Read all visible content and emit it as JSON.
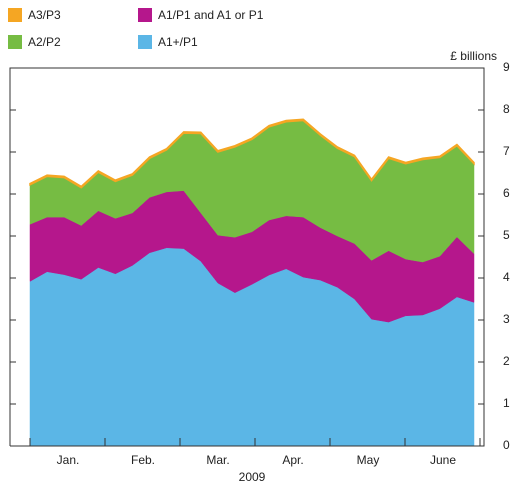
{
  "chart_data": {
    "type": "area",
    "stacked": true,
    "unit_label": "£ billions",
    "xlabel": "2009",
    "months": [
      "Jan.",
      "Feb.",
      "Mar.",
      "Apr.",
      "May",
      "June"
    ],
    "categories": [
      null,
      null,
      null,
      null,
      null,
      null,
      null,
      null,
      null,
      null,
      null,
      null,
      null,
      null,
      null,
      null,
      null,
      null,
      null,
      null,
      null,
      null,
      null,
      null,
      null,
      null,
      null
    ],
    "series": [
      {
        "name": "A1+/P1",
        "color": "#5bb6e6",
        "values": [
          3.92,
          4.15,
          4.08,
          3.97,
          4.25,
          4.1,
          4.3,
          4.6,
          4.72,
          4.7,
          4.4,
          3.88,
          3.65,
          3.85,
          4.07,
          4.22,
          4.02,
          3.95,
          3.78,
          3.5,
          3.02,
          2.95,
          3.1,
          3.12,
          3.27,
          3.55,
          3.42
        ]
      },
      {
        "name": "A1/P1 and A1 or P1",
        "color": "#b5178c",
        "values": [
          1.36,
          1.3,
          1.37,
          1.28,
          1.35,
          1.32,
          1.25,
          1.32,
          1.33,
          1.38,
          1.15,
          1.14,
          1.32,
          1.25,
          1.31,
          1.26,
          1.43,
          1.25,
          1.22,
          1.32,
          1.4,
          1.7,
          1.35,
          1.26,
          1.25,
          1.43,
          1.16
        ]
      },
      {
        "name": "A2/P2",
        "color": "#76bc43",
        "values": [
          0.94,
          0.97,
          0.94,
          0.9,
          0.92,
          0.88,
          0.9,
          0.93,
          1.0,
          1.37,
          1.89,
          1.98,
          2.15,
          2.2,
          2.22,
          2.24,
          2.3,
          2.2,
          2.09,
          2.07,
          1.9,
          2.2,
          2.27,
          2.44,
          2.35,
          2.17,
          2.14
        ]
      },
      {
        "name": "A3/P3",
        "color": "#f5a623",
        "values": [
          0.03,
          0.03,
          0.03,
          0.03,
          0.03,
          0.03,
          0.03,
          0.03,
          0.03,
          0.03,
          0.03,
          0.03,
          0.03,
          0.03,
          0.03,
          0.03,
          0.03,
          0.03,
          0.03,
          0.03,
          0.03,
          0.03,
          0.03,
          0.03,
          0.03,
          0.03,
          0.03
        ]
      }
    ],
    "ylim": [
      0,
      9
    ],
    "yticks": [
      0,
      1,
      2,
      3,
      4,
      5,
      6,
      7,
      8,
      9
    ],
    "y_axis_side": "right"
  }
}
